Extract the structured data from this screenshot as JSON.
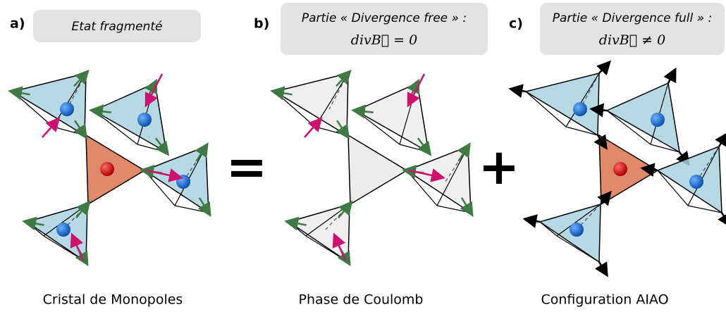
{
  "panels": [
    {
      "label": "a)",
      "box_lines": [
        "Etat fragmenté"
      ],
      "caption": "Cristal de Monopoles"
    },
    {
      "label": "b)",
      "box_lines": [
        "Partie « Divergence free » :",
        "divB⃗ = 0"
      ],
      "caption": "Phase de Coulomb"
    },
    {
      "label": "c)",
      "box_lines": [
        "Partie « Divergence full » :",
        "divB⃗ ≠ 0"
      ],
      "caption": "Configuration AIAO"
    }
  ],
  "operators": [
    "=",
    "+"
  ]
}
